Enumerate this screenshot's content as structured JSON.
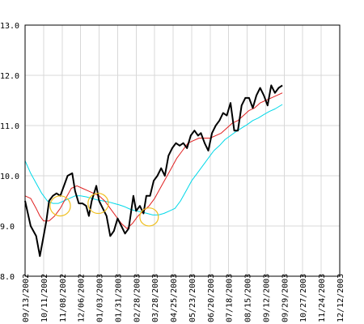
{
  "chart_data": {
    "type": "line",
    "title": "",
    "xlabel": "",
    "ylabel": "",
    "ylim": [
      8.0,
      13.0
    ],
    "yticks": [
      "8.0",
      "9.0",
      "10.0",
      "11.0",
      "12.0",
      "13.0"
    ],
    "grid": true,
    "x_ticks": [
      "09/13/2002",
      "10/11/2002",
      "11/08/2002",
      "12/06/2002",
      "01/03/2003",
      "01/31/2003",
      "02/28/2003",
      "03/28/2003",
      "04/25/2003",
      "05/23/2003",
      "06/20/2003",
      "07/18/2003",
      "08/15/2003",
      "09/12/2003",
      "09/29/2003",
      "10/27/2003",
      "11/24/2003",
      "12/12/2003"
    ],
    "series": [
      {
        "color": "#000000",
        "width": 2,
        "points": [
          [
            0,
            9.5
          ],
          [
            0.3,
            9.0
          ],
          [
            0.6,
            8.8
          ],
          [
            0.8,
            8.4
          ],
          [
            1.0,
            8.8
          ],
          [
            1.15,
            9.1
          ],
          [
            1.3,
            9.5
          ],
          [
            1.5,
            9.6
          ],
          [
            1.7,
            9.65
          ],
          [
            1.9,
            9.6
          ],
          [
            2.1,
            9.8
          ],
          [
            2.3,
            10.0
          ],
          [
            2.55,
            10.05
          ],
          [
            2.7,
            9.7
          ],
          [
            2.9,
            9.45
          ],
          [
            3.1,
            9.45
          ],
          [
            3.3,
            9.4
          ],
          [
            3.45,
            9.2
          ],
          [
            3.6,
            9.5
          ],
          [
            3.85,
            9.8
          ],
          [
            4.0,
            9.5
          ],
          [
            4.2,
            9.35
          ],
          [
            4.4,
            9.2
          ],
          [
            4.6,
            8.8
          ],
          [
            4.8,
            8.9
          ],
          [
            5.0,
            9.15
          ],
          [
            5.2,
            9.0
          ],
          [
            5.4,
            8.85
          ],
          [
            5.6,
            8.95
          ],
          [
            5.85,
            9.6
          ],
          [
            6.0,
            9.3
          ],
          [
            6.2,
            9.4
          ],
          [
            6.4,
            9.25
          ],
          [
            6.55,
            9.6
          ],
          [
            6.75,
            9.6
          ],
          [
            6.95,
            9.9
          ],
          [
            7.15,
            10.0
          ],
          [
            7.35,
            10.15
          ],
          [
            7.55,
            10.0
          ],
          [
            7.75,
            10.4
          ],
          [
            7.95,
            10.55
          ],
          [
            8.15,
            10.65
          ],
          [
            8.35,
            10.6
          ],
          [
            8.55,
            10.65
          ],
          [
            8.75,
            10.55
          ],
          [
            8.95,
            10.8
          ],
          [
            9.15,
            10.9
          ],
          [
            9.35,
            10.8
          ],
          [
            9.5,
            10.85
          ],
          [
            9.7,
            10.65
          ],
          [
            9.9,
            10.5
          ],
          [
            10.1,
            10.85
          ],
          [
            10.3,
            11.0
          ],
          [
            10.5,
            11.1
          ],
          [
            10.7,
            11.25
          ],
          [
            10.9,
            11.2
          ],
          [
            11.1,
            11.45
          ],
          [
            11.3,
            10.9
          ],
          [
            11.5,
            10.9
          ],
          [
            11.7,
            11.4
          ],
          [
            11.9,
            11.55
          ],
          [
            12.1,
            11.55
          ],
          [
            12.3,
            11.35
          ],
          [
            12.5,
            11.6
          ],
          [
            12.7,
            11.75
          ],
          [
            12.9,
            11.6
          ],
          [
            13.1,
            11.4
          ],
          [
            13.3,
            11.8
          ],
          [
            13.5,
            11.65
          ],
          [
            13.7,
            11.75
          ],
          [
            13.9,
            11.8
          ]
        ]
      },
      {
        "color": "#e02020",
        "width": 1,
        "points": [
          [
            0,
            9.6
          ],
          [
            0.3,
            9.55
          ],
          [
            0.6,
            9.35
          ],
          [
            0.8,
            9.2
          ],
          [
            1.0,
            9.1
          ],
          [
            1.3,
            9.1
          ],
          [
            1.6,
            9.2
          ],
          [
            1.9,
            9.35
          ],
          [
            2.2,
            9.55
          ],
          [
            2.5,
            9.75
          ],
          [
            2.8,
            9.8
          ],
          [
            3.1,
            9.75
          ],
          [
            3.4,
            9.7
          ],
          [
            3.7,
            9.65
          ],
          [
            4.0,
            9.6
          ],
          [
            4.3,
            9.5
          ],
          [
            4.6,
            9.35
          ],
          [
            4.9,
            9.2
          ],
          [
            5.2,
            9.05
          ],
          [
            5.5,
            8.95
          ],
          [
            5.8,
            9.05
          ],
          [
            6.1,
            9.2
          ],
          [
            6.4,
            9.3
          ],
          [
            6.7,
            9.4
          ],
          [
            7.0,
            9.55
          ],
          [
            7.3,
            9.75
          ],
          [
            7.6,
            9.95
          ],
          [
            7.9,
            10.15
          ],
          [
            8.2,
            10.35
          ],
          [
            8.5,
            10.5
          ],
          [
            8.8,
            10.65
          ],
          [
            9.1,
            10.7
          ],
          [
            9.4,
            10.75
          ],
          [
            9.7,
            10.75
          ],
          [
            10.0,
            10.75
          ],
          [
            10.3,
            10.8
          ],
          [
            10.6,
            10.85
          ],
          [
            10.9,
            10.95
          ],
          [
            11.2,
            11.05
          ],
          [
            11.5,
            11.1
          ],
          [
            11.8,
            11.2
          ],
          [
            12.1,
            11.3
          ],
          [
            12.4,
            11.35
          ],
          [
            12.7,
            11.45
          ],
          [
            13.0,
            11.5
          ],
          [
            13.3,
            11.55
          ],
          [
            13.6,
            11.6
          ],
          [
            13.9,
            11.65
          ]
        ]
      },
      {
        "color": "#00d8e8",
        "width": 1,
        "points": [
          [
            0,
            10.3
          ],
          [
            0.3,
            10.05
          ],
          [
            0.6,
            9.85
          ],
          [
            0.9,
            9.65
          ],
          [
            1.2,
            9.5
          ],
          [
            1.5,
            9.45
          ],
          [
            1.8,
            9.45
          ],
          [
            2.1,
            9.5
          ],
          [
            2.4,
            9.55
          ],
          [
            2.7,
            9.6
          ],
          [
            3.0,
            9.6
          ],
          [
            3.3,
            9.58
          ],
          [
            3.6,
            9.55
          ],
          [
            3.9,
            9.52
          ],
          [
            4.2,
            9.5
          ],
          [
            4.5,
            9.48
          ],
          [
            4.8,
            9.45
          ],
          [
            5.1,
            9.42
          ],
          [
            5.4,
            9.38
          ],
          [
            5.7,
            9.33
          ],
          [
            6.0,
            9.3
          ],
          [
            6.3,
            9.28
          ],
          [
            6.6,
            9.25
          ],
          [
            6.9,
            9.22
          ],
          [
            7.2,
            9.22
          ],
          [
            7.5,
            9.25
          ],
          [
            7.8,
            9.3
          ],
          [
            8.1,
            9.35
          ],
          [
            8.4,
            9.5
          ],
          [
            8.7,
            9.7
          ],
          [
            9.0,
            9.9
          ],
          [
            9.3,
            10.05
          ],
          [
            9.6,
            10.2
          ],
          [
            9.9,
            10.35
          ],
          [
            10.2,
            10.5
          ],
          [
            10.5,
            10.6
          ],
          [
            10.8,
            10.72
          ],
          [
            11.1,
            10.8
          ],
          [
            11.4,
            10.88
          ],
          [
            11.7,
            10.95
          ],
          [
            12.0,
            11.02
          ],
          [
            12.3,
            11.1
          ],
          [
            12.6,
            11.15
          ],
          [
            12.9,
            11.22
          ],
          [
            13.2,
            11.28
          ],
          [
            13.5,
            11.33
          ],
          [
            13.9,
            11.42
          ]
        ]
      }
    ],
    "annotations": [
      {
        "shape": "ellipse",
        "color": "#f0c020",
        "cx": 1.9,
        "cy": 9.4,
        "rx": 0.55,
        "ry": 0.2
      },
      {
        "shape": "ellipse",
        "color": "#f0c020",
        "cx": 3.95,
        "cy": 9.45,
        "rx": 0.55,
        "ry": 0.2
      },
      {
        "shape": "ellipse",
        "color": "#f0c020",
        "cx": 6.7,
        "cy": 9.18,
        "rx": 0.5,
        "ry": 0.18
      }
    ]
  }
}
